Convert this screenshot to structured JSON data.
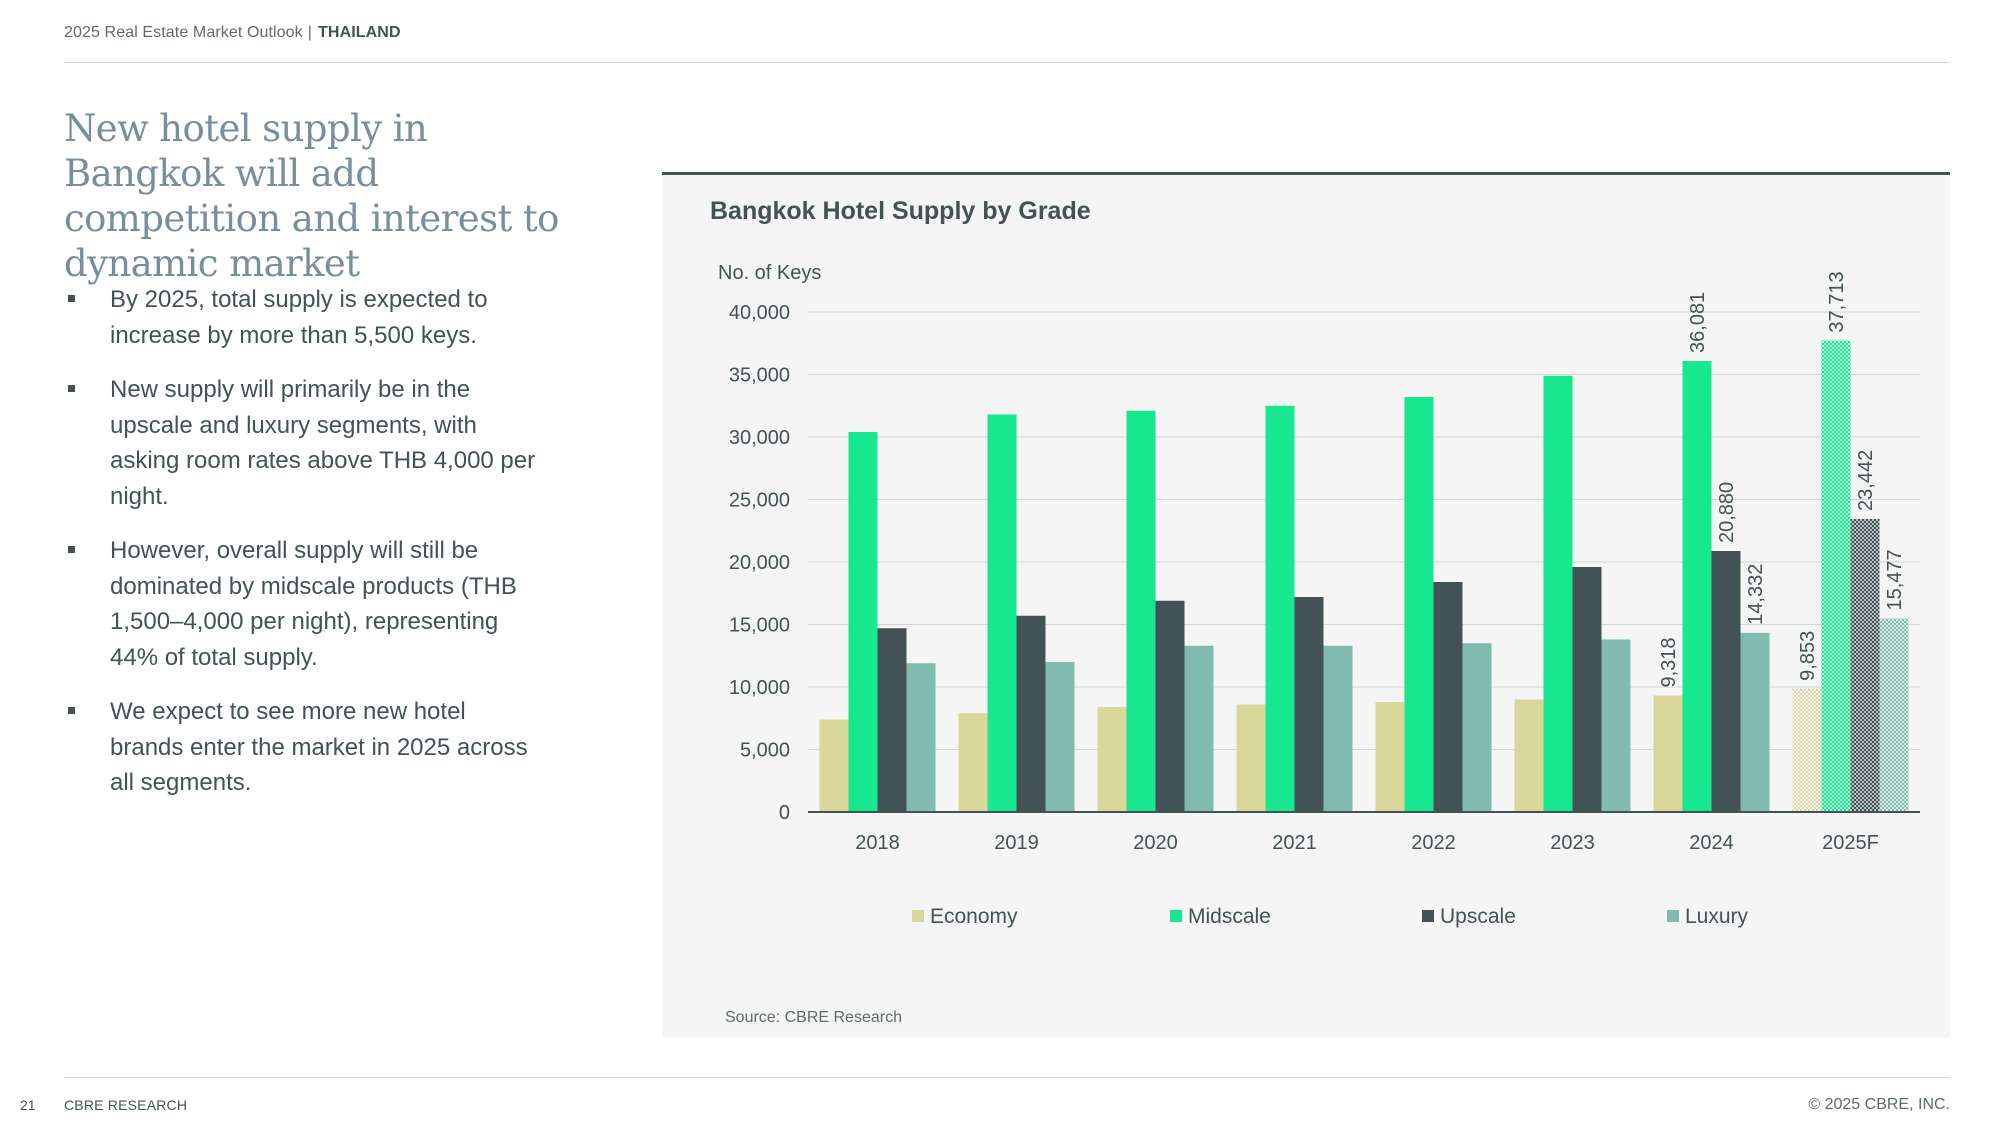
{
  "header": {
    "report": "2025 Real Estate Market Outlook",
    "separator": "|",
    "country": "THAILAND"
  },
  "headline": "New hotel supply in Bangkok will add competition and interest to dynamic market",
  "bullets": [
    "By 2025, total supply is expected to increase by more than 5,500 keys.",
    "New supply will primarily be in the upscale and luxury segments, with asking room rates above THB 4,000 per night.",
    "However, overall supply will still be dominated by midscale products (THB 1,500–4,000 per night), representing 44% of total supply.",
    "We expect to see more new hotel brands enter the market in 2025 across all segments."
  ],
  "chart_data": {
    "type": "bar",
    "title": "Bangkok Hotel Supply by Grade",
    "ylabel": "No. of Keys",
    "xlabel": "",
    "categories": [
      "2018",
      "2019",
      "2020",
      "2021",
      "2022",
      "2023",
      "2024",
      "2025F"
    ],
    "ylim": [
      0,
      40000
    ],
    "yticks": [
      0,
      5000,
      10000,
      15000,
      20000,
      25000,
      30000,
      35000,
      40000
    ],
    "ytick_labels": [
      "0",
      "5,000",
      "10,000",
      "15,000",
      "20,000",
      "25,000",
      "30,000",
      "35,000",
      "40,000"
    ],
    "grid": true,
    "legend_position": "bottom",
    "forecast_category": "2025F",
    "series": [
      {
        "name": "Economy",
        "color": "#dad79a",
        "values": [
          7400,
          7900,
          8400,
          8600,
          8800,
          9000,
          9318,
          9853
        ]
      },
      {
        "name": "Midscale",
        "color": "#17e88f",
        "values": [
          30400,
          31800,
          32100,
          32500,
          33200,
          34900,
          36081,
          37713
        ]
      },
      {
        "name": "Upscale",
        "color": "#435254",
        "values": [
          14700,
          15700,
          16900,
          17200,
          18400,
          19600,
          20880,
          23442
        ]
      },
      {
        "name": "Luxury",
        "color": "#80bbad",
        "values": [
          11900,
          12000,
          13300,
          13300,
          13500,
          13800,
          14332,
          15477
        ]
      }
    ],
    "data_labels": {
      "2024": [
        "9,318",
        "36,081",
        "20,880",
        "14,332"
      ],
      "2025F": [
        "9,853",
        "37,713",
        "23,442",
        "15,477"
      ]
    },
    "source": "Source: CBRE Research"
  },
  "footer": {
    "page_number": "21",
    "brand": "CBRE RESEARCH",
    "copyright": "© 2025 CBRE, INC."
  }
}
